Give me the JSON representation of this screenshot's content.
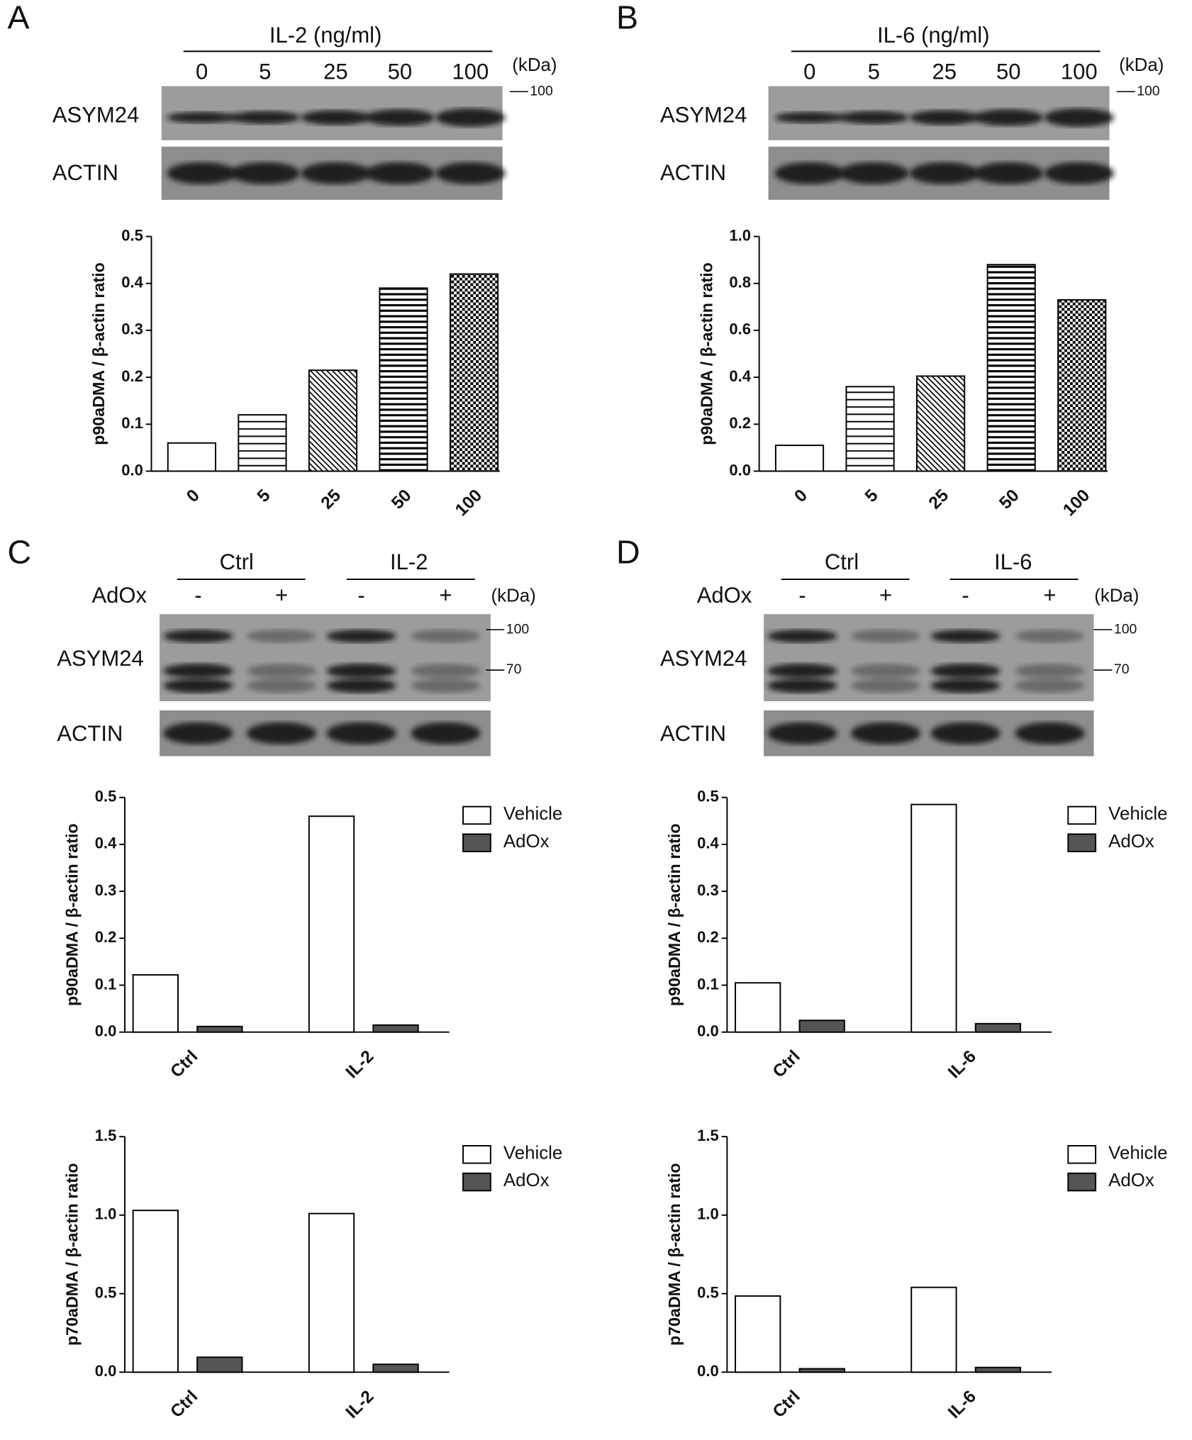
{
  "blots": [
    {
      "letter": "A",
      "treatment": "IL-2 (ng/ml)",
      "lanes": [
        "0",
        "5",
        "25",
        "50",
        "100"
      ],
      "unit": "(kDa)",
      "markers": [
        "100"
      ],
      "rows": [
        "ASYM24",
        "ACTIN"
      ]
    },
    {
      "letter": "B",
      "treatment": "IL-6 (ng/ml)",
      "lanes": [
        "0",
        "5",
        "25",
        "50",
        "100"
      ],
      "unit": "(kDa)",
      "markers": [
        "100"
      ],
      "rows": [
        "ASYM24",
        "ACTIN"
      ]
    },
    {
      "letter": "C",
      "groups": [
        "Ctrl",
        "IL-2"
      ],
      "agent": "AdOx",
      "signs": [
        "-",
        "+",
        "-",
        "+"
      ],
      "unit": "(kDa)",
      "markers": [
        "100",
        "70"
      ],
      "rows": [
        "ASYM24",
        "ACTIN"
      ]
    },
    {
      "letter": "D",
      "groups": [
        "Ctrl",
        "IL-6"
      ],
      "agent": "AdOx",
      "signs": [
        "-",
        "+",
        "-",
        "+"
      ],
      "unit": "(kDa)",
      "markers": [
        "100",
        "70"
      ],
      "rows": [
        "ASYM24",
        "ACTIN"
      ]
    }
  ],
  "chart_data": [
    {
      "type": "bar",
      "ylabel": "p90aDMA / β-actin ratio",
      "categories": [
        "0",
        "5",
        "25",
        "50",
        "100"
      ],
      "values": [
        0.06,
        0.12,
        0.215,
        0.39,
        0.42
      ],
      "patterns": [
        "none",
        "horizontal",
        "diagonal",
        "horizontal-dense",
        "checker"
      ],
      "ylim": [
        0,
        0.5
      ],
      "yticks": [
        {
          "value": 0,
          "label": "0.0"
        },
        0.1,
        0.2,
        0.3,
        0.4,
        0.5
      ]
    },
    {
      "type": "bar",
      "ylabel": "p90aDMA / β-actin ratio",
      "categories": [
        "0",
        "5",
        "25",
        "50",
        "100"
      ],
      "values": [
        0.11,
        0.36,
        0.405,
        0.88,
        0.73
      ],
      "patterns": [
        "none",
        "horizontal",
        "diagonal",
        "horizontal-dense",
        "checker"
      ],
      "ylim": [
        0,
        1
      ],
      "yticks": [
        {
          "value": 0,
          "label": "0.0"
        },
        0.2,
        0.4,
        0.6,
        0.8,
        {
          "value": 1,
          "label": "1.0"
        }
      ]
    },
    {
      "type": "bar",
      "ylabel": "p90aDMA / β-actin ratio",
      "categories": [
        "Ctrl",
        "IL-2"
      ],
      "series": [
        {
          "name": "Vehicle",
          "color": "#ffffff",
          "values": [
            0.122,
            0.46
          ]
        },
        {
          "name": "AdOx",
          "color": "#555555",
          "values": [
            0.012,
            0.015
          ]
        }
      ],
      "ylim": [
        0,
        0.5
      ],
      "yticks": [
        {
          "value": 0,
          "label": "0.0"
        },
        0.1,
        0.2,
        0.3,
        0.4,
        0.5
      ]
    },
    {
      "type": "bar",
      "ylabel": "p90aDMA / β-actin ratio",
      "categories": [
        "Ctrl",
        "IL-6"
      ],
      "series": [
        {
          "name": "Vehicle",
          "color": "#ffffff",
          "values": [
            0.105,
            0.485
          ]
        },
        {
          "name": "AdOx",
          "color": "#555555",
          "values": [
            0.025,
            0.018
          ]
        }
      ],
      "ylim": [
        0,
        0.5
      ],
      "yticks": [
        {
          "value": 0,
          "label": "0.0"
        },
        0.1,
        0.2,
        0.3,
        0.4,
        0.5
      ]
    },
    {
      "type": "bar",
      "ylabel": "p70aDMA / β-actin ratio",
      "categories": [
        "Ctrl",
        "IL-2"
      ],
      "series": [
        {
          "name": "Vehicle",
          "color": "#ffffff",
          "values": [
            1.03,
            1.01
          ]
        },
        {
          "name": "AdOx",
          "color": "#555555",
          "values": [
            0.095,
            0.05
          ]
        }
      ],
      "ylim": [
        0,
        1.5
      ],
      "yticks": [
        {
          "value": 0,
          "label": "0.0"
        },
        0.5,
        {
          "value": 1,
          "label": "1.0"
        },
        1.5
      ]
    },
    {
      "type": "bar",
      "ylabel": "p70aDMA / β-actin ratio",
      "categories": [
        "Ctrl",
        "IL-6"
      ],
      "series": [
        {
          "name": "Vehicle",
          "color": "#ffffff",
          "values": [
            0.485,
            0.54
          ]
        },
        {
          "name": "AdOx",
          "color": "#555555",
          "values": [
            0.022,
            0.03
          ]
        }
      ],
      "ylim": [
        0,
        1.5
      ],
      "yticks": [
        {
          "value": 0,
          "label": "0.0"
        },
        0.5,
        {
          "value": 1,
          "label": "1.0"
        },
        1.5
      ]
    }
  ]
}
